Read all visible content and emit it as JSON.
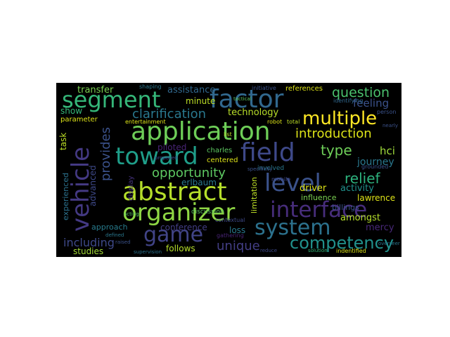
{
  "wordcloud": {
    "words": [
      {
        "text": "segment",
        "color": "#35b779"
      },
      {
        "text": "factor",
        "color": "#31688e"
      },
      {
        "text": "application",
        "color": "#6ece58"
      },
      {
        "text": "toward",
        "color": "#1f9e89"
      },
      {
        "text": "field",
        "color": "#3e4989"
      },
      {
        "text": "abstract",
        "color": "#b5de2b"
      },
      {
        "text": "vehicle",
        "color": "#443983"
      },
      {
        "text": "organizer",
        "color": "#8fd744"
      },
      {
        "text": "interface",
        "color": "#472d7b"
      },
      {
        "text": "level",
        "color": "#3b528b"
      },
      {
        "text": "game",
        "color": "#414487"
      },
      {
        "text": "system",
        "color": "#2c728e"
      },
      {
        "text": "competency",
        "color": "#21918c"
      },
      {
        "text": "multiple",
        "color": "#fde725"
      },
      {
        "text": "question",
        "color": "#4ac16d"
      },
      {
        "text": "introduction",
        "color": "#dde318"
      },
      {
        "text": "type",
        "color": "#6ece58"
      },
      {
        "text": "clarification",
        "color": "#2a788e"
      },
      {
        "text": "opportunity",
        "color": "#5ec962"
      },
      {
        "text": "provides",
        "color": "#3b528b"
      },
      {
        "text": "relief",
        "color": "#2db27d"
      },
      {
        "text": "unique",
        "color": "#433e85"
      },
      {
        "text": "including",
        "color": "#3e4989"
      },
      {
        "text": "assistance",
        "color": "#31688e"
      },
      {
        "text": "transfer",
        "color": "#7ad151"
      },
      {
        "text": "technology",
        "color": "#b8de29"
      },
      {
        "text": "feeling",
        "color": "#3b528b"
      },
      {
        "text": "hci",
        "color": "#9fda3a"
      },
      {
        "text": "journey",
        "color": "#2a788e"
      },
      {
        "text": "activity",
        "color": "#21918c"
      },
      {
        "text": "lawrence",
        "color": "#dde318"
      },
      {
        "text": "amongst",
        "color": "#b5de2b"
      },
      {
        "text": "mercy",
        "color": "#482878"
      },
      {
        "text": "driver",
        "color": "#dde318"
      },
      {
        "text": "influence",
        "color": "#7ad151"
      },
      {
        "text": "limitation",
        "color": "#bddf26"
      },
      {
        "text": "erlbaum",
        "color": "#2a788e"
      },
      {
        "text": "advanced",
        "color": "#3e4989"
      },
      {
        "text": "experienced",
        "color": "#2c728e"
      },
      {
        "text": "display",
        "color": "#46337e"
      },
      {
        "text": "piloted",
        "color": "#482475"
      },
      {
        "text": "charles",
        "color": "#5ec962"
      },
      {
        "text": "centered",
        "color": "#dde318"
      },
      {
        "text": "minute",
        "color": "#bddf26"
      },
      {
        "text": "billings",
        "color": "#3b528b"
      },
      {
        "text": "conference",
        "color": "#433e85"
      },
      {
        "text": "loss",
        "color": "#2a788e"
      },
      {
        "text": "follows",
        "color": "#b5de2b"
      },
      {
        "text": "studies",
        "color": "#a2da37"
      },
      {
        "text": "show",
        "color": "#35b779"
      },
      {
        "text": "parameter",
        "color": "#dde318"
      },
      {
        "text": "task",
        "color": "#bddf26"
      },
      {
        "text": "approach",
        "color": "#287c8e"
      },
      {
        "text": "involved",
        "color": "#2a788e"
      },
      {
        "text": "references",
        "color": "#dde318"
      },
      {
        "text": "initiative",
        "color": "#3b528b"
      },
      {
        "text": "discussion",
        "color": "#5ec962"
      },
      {
        "text": "contextual",
        "color": "#3e4989"
      },
      {
        "text": "gathering",
        "color": "#482475"
      },
      {
        "text": "entertainment",
        "color": "#dde318"
      },
      {
        "text": "shaping",
        "color": "#2a788e"
      },
      {
        "text": "identifying",
        "color": "#31688e"
      },
      {
        "text": "person",
        "color": "#3b528b"
      },
      {
        "text": "total",
        "color": "#bddf26"
      },
      {
        "text": "robot",
        "color": "#dde318"
      },
      {
        "text": "list",
        "color": "#bddf26"
      },
      {
        "text": "mobile",
        "color": "#3e4989"
      },
      {
        "text": "grounded",
        "color": "#3b528b"
      },
      {
        "text": "indentified",
        "color": "#dde318"
      },
      {
        "text": "reduce",
        "color": "#3e4989"
      },
      {
        "text": "supervision",
        "color": "#2c728e"
      },
      {
        "text": "raised",
        "color": "#3b528b"
      },
      {
        "text": "acting",
        "color": "#5ec962"
      },
      {
        "text": "defined",
        "color": "#2a788e"
      },
      {
        "text": "proposed",
        "color": "#3e4989"
      },
      {
        "text": "tactical",
        "color": "#5ec962"
      },
      {
        "text": "nearly",
        "color": "#3b528b"
      },
      {
        "text": "solution",
        "color": "#35b779"
      },
      {
        "text": "overseer",
        "color": "#2a788e"
      },
      {
        "text": "specificity",
        "color": "#3b528b"
      }
    ]
  }
}
